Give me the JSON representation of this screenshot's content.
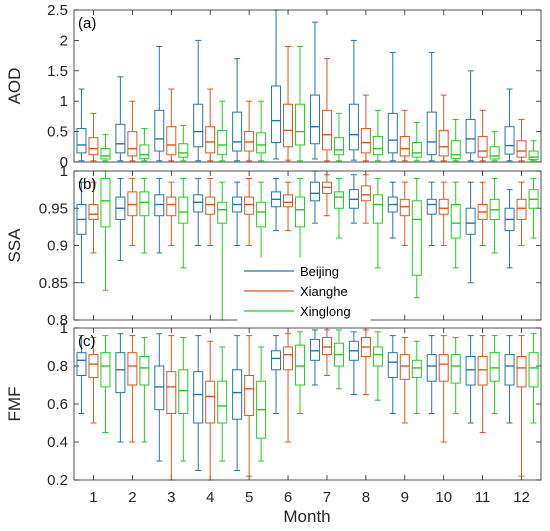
{
  "chart_data": {
    "type": "boxplot",
    "xlabel": "Month",
    "categories": [
      "1",
      "2",
      "3",
      "4",
      "5",
      "6",
      "7",
      "8",
      "9",
      "10",
      "11",
      "12"
    ],
    "stations": [
      {
        "name": "Beijing",
        "color": "#1f77b4"
      },
      {
        "name": "Xianghe",
        "color": "#e0561c"
      },
      {
        "name": "Xinglong",
        "color": "#22cc22"
      }
    ],
    "legend_position": "center",
    "panels": [
      {
        "label": "(a)",
        "ylabel": "AOD",
        "ylim": [
          0,
          2.5
        ],
        "yticks": [
          "0",
          "0.5",
          "1",
          "1.5",
          "2",
          "2.5"
        ],
        "series": [
          {
            "name": "Beijing",
            "boxes": [
              [
                0.02,
                0.15,
                0.28,
                0.55,
                1.2
              ],
              [
                0.02,
                0.15,
                0.3,
                0.62,
                1.4
              ],
              [
                0.02,
                0.18,
                0.38,
                0.85,
                1.9
              ],
              [
                0.02,
                0.25,
                0.5,
                0.95,
                2.0
              ],
              [
                0.02,
                0.18,
                0.33,
                0.82,
                1.7
              ],
              [
                0.05,
                0.32,
                0.68,
                1.25,
                2.5
              ],
              [
                0.05,
                0.3,
                0.58,
                1.1,
                2.3
              ],
              [
                0.03,
                0.2,
                0.45,
                0.95,
                2.0
              ],
              [
                0.02,
                0.15,
                0.36,
                0.8,
                1.8
              ],
              [
                0.02,
                0.12,
                0.33,
                0.82,
                1.8
              ],
              [
                0.02,
                0.15,
                0.38,
                0.7,
                1.5
              ],
              [
                0.02,
                0.13,
                0.27,
                0.58,
                1.2
              ]
            ]
          },
          {
            "name": "Xianghe",
            "boxes": [
              [
                0.02,
                0.12,
                0.22,
                0.4,
                0.8
              ],
              [
                0.02,
                0.1,
                0.22,
                0.5,
                1.0
              ],
              [
                0.02,
                0.12,
                0.28,
                0.58,
                1.2
              ],
              [
                0.02,
                0.15,
                0.33,
                0.58,
                1.2
              ],
              [
                0.02,
                0.18,
                0.33,
                0.5,
                1.0
              ],
              [
                0.03,
                0.25,
                0.52,
                0.95,
                1.9
              ],
              [
                0.02,
                0.2,
                0.45,
                0.85,
                1.7
              ],
              [
                0.02,
                0.15,
                0.32,
                0.55,
                1.1
              ],
              [
                0.02,
                0.1,
                0.22,
                0.42,
                0.85
              ],
              [
                0.02,
                0.1,
                0.25,
                0.52,
                1.1
              ],
              [
                0.02,
                0.08,
                0.18,
                0.42,
                0.85
              ],
              [
                0.02,
                0.08,
                0.18,
                0.35,
                0.7
              ]
            ]
          },
          {
            "name": "Xinglong",
            "boxes": [
              [
                0.02,
                0.05,
                0.1,
                0.22,
                0.45
              ],
              [
                0.02,
                0.06,
                0.12,
                0.28,
                0.55
              ],
              [
                0.02,
                0.08,
                0.15,
                0.3,
                0.6
              ],
              [
                0.02,
                0.12,
                0.28,
                0.52,
                1.0
              ],
              [
                0.02,
                0.15,
                0.28,
                0.48,
                1.0
              ],
              [
                0.02,
                0.28,
                0.5,
                0.95,
                1.9
              ],
              [
                0.02,
                0.12,
                0.2,
                0.4,
                0.8
              ],
              [
                0.02,
                0.12,
                0.22,
                0.42,
                0.85
              ],
              [
                0.02,
                0.08,
                0.15,
                0.32,
                0.65
              ],
              [
                0.02,
                0.06,
                0.12,
                0.35,
                0.7
              ],
              [
                0.02,
                0.05,
                0.1,
                0.25,
                0.5
              ],
              [
                0.02,
                0.04,
                0.08,
                0.18,
                0.35
              ]
            ]
          }
        ]
      },
      {
        "label": "(b)",
        "ylabel": "SSA",
        "ylim": [
          0.8,
          1.0
        ],
        "yticks": [
          "0.8",
          "0.85",
          "0.9",
          "0.95",
          "1"
        ],
        "series": [
          {
            "name": "Beijing",
            "boxes": [
              [
                0.85,
                0.915,
                0.935,
                0.955,
                0.985
              ],
              [
                0.88,
                0.935,
                0.95,
                0.965,
                0.99
              ],
              [
                0.89,
                0.94,
                0.955,
                0.968,
                0.99
              ],
              [
                0.9,
                0.945,
                0.958,
                0.968,
                0.99
              ],
              [
                0.9,
                0.945,
                0.955,
                0.965,
                0.985
              ],
              [
                0.92,
                0.952,
                0.962,
                0.972,
                0.99
              ],
              [
                0.93,
                0.96,
                0.97,
                0.985,
                1.0
              ],
              [
                0.93,
                0.95,
                0.962,
                0.975,
                0.995
              ],
              [
                0.91,
                0.945,
                0.955,
                0.965,
                0.985
              ],
              [
                0.9,
                0.942,
                0.955,
                0.962,
                0.985
              ],
              [
                0.85,
                0.915,
                0.93,
                0.95,
                0.985
              ],
              [
                0.87,
                0.92,
                0.935,
                0.95,
                0.975
              ]
            ]
          },
          {
            "name": "Xianghe",
            "boxes": [
              [
                0.89,
                0.935,
                0.942,
                0.955,
                0.985
              ],
              [
                0.9,
                0.94,
                0.955,
                0.972,
                0.99
              ],
              [
                0.9,
                0.94,
                0.955,
                0.965,
                0.985
              ],
              [
                0.9,
                0.942,
                0.955,
                0.965,
                0.99
              ],
              [
                0.9,
                0.942,
                0.955,
                0.965,
                0.99
              ],
              [
                0.92,
                0.952,
                0.958,
                0.968,
                0.985
              ],
              [
                0.94,
                0.97,
                0.978,
                0.985,
                0.995
              ],
              [
                0.93,
                0.96,
                0.968,
                0.98,
                0.995
              ],
              [
                0.9,
                0.94,
                0.952,
                0.962,
                0.985
              ],
              [
                0.9,
                0.942,
                0.95,
                0.962,
                0.985
              ],
              [
                0.9,
                0.935,
                0.945,
                0.955,
                0.985
              ],
              [
                0.9,
                0.935,
                0.95,
                0.962,
                0.985
              ]
            ]
          },
          {
            "name": "Xinglong",
            "boxes": [
              [
                0.84,
                0.925,
                0.96,
                0.99,
                1.0
              ],
              [
                0.89,
                0.94,
                0.958,
                0.972,
                0.99
              ],
              [
                0.87,
                0.93,
                0.945,
                0.965,
                0.99
              ],
              [
                0.8,
                0.93,
                0.948,
                0.958,
                0.985
              ],
              [
                0.88,
                0.925,
                0.945,
                0.958,
                0.985
              ],
              [
                0.86,
                0.925,
                0.948,
                0.965,
                0.99
              ],
              [
                0.91,
                0.95,
                0.965,
                0.972,
                0.99
              ],
              [
                0.87,
                0.93,
                0.955,
                0.968,
                0.99
              ],
              [
                0.83,
                0.86,
                0.935,
                0.96,
                0.99
              ],
              [
                0.87,
                0.91,
                0.93,
                0.955,
                0.985
              ],
              [
                0.89,
                0.935,
                0.948,
                0.962,
                0.99
              ],
              [
                0.91,
                0.95,
                0.962,
                0.975,
                0.99
              ]
            ]
          }
        ]
      },
      {
        "label": "(c)",
        "ylabel": "FMF",
        "ylim": [
          0.2,
          1.0
        ],
        "yticks": [
          "0.2",
          "0.4",
          "0.6",
          "0.8",
          "1"
        ],
        "series": [
          {
            "name": "Beijing",
            "boxes": [
              [
                0.55,
                0.75,
                0.83,
                0.87,
                0.96
              ],
              [
                0.4,
                0.66,
                0.78,
                0.87,
                0.97
              ],
              [
                0.3,
                0.57,
                0.69,
                0.8,
                0.97
              ],
              [
                0.25,
                0.5,
                0.65,
                0.77,
                0.96
              ],
              [
                0.25,
                0.52,
                0.66,
                0.78,
                0.96
              ],
              [
                0.55,
                0.78,
                0.84,
                0.88,
                0.96
              ],
              [
                0.7,
                0.83,
                0.88,
                0.94,
                0.99
              ],
              [
                0.65,
                0.83,
                0.88,
                0.93,
                0.98
              ],
              [
                0.55,
                0.74,
                0.82,
                0.87,
                0.96
              ],
              [
                0.55,
                0.72,
                0.8,
                0.86,
                0.96
              ],
              [
                0.5,
                0.7,
                0.78,
                0.85,
                0.96
              ],
              [
                0.5,
                0.7,
                0.8,
                0.86,
                0.96
              ]
            ]
          },
          {
            "name": "Xianghe",
            "boxes": [
              [
                0.5,
                0.74,
                0.81,
                0.86,
                0.95
              ],
              [
                0.4,
                0.7,
                0.8,
                0.87,
                0.96
              ],
              [
                0.2,
                0.55,
                0.69,
                0.77,
                0.96
              ],
              [
                0.2,
                0.5,
                0.64,
                0.72,
                0.93
              ],
              [
                0.22,
                0.54,
                0.68,
                0.75,
                0.96
              ],
              [
                0.4,
                0.78,
                0.86,
                0.9,
                0.97
              ],
              [
                0.75,
                0.86,
                0.9,
                0.95,
                0.99
              ],
              [
                0.65,
                0.85,
                0.9,
                0.95,
                0.99
              ],
              [
                0.5,
                0.73,
                0.8,
                0.86,
                0.95
              ],
              [
                0.4,
                0.72,
                0.81,
                0.86,
                0.96
              ],
              [
                0.45,
                0.7,
                0.78,
                0.85,
                0.96
              ],
              [
                0.22,
                0.69,
                0.79,
                0.85,
                0.96
              ]
            ]
          },
          {
            "name": "Xinglong",
            "boxes": [
              [
                0.45,
                0.69,
                0.8,
                0.87,
                0.96
              ],
              [
                0.4,
                0.7,
                0.79,
                0.85,
                0.95
              ],
              [
                0.3,
                0.55,
                0.67,
                0.78,
                0.95
              ],
              [
                0.3,
                0.5,
                0.59,
                0.72,
                0.9
              ],
              [
                0.3,
                0.42,
                0.57,
                0.72,
                0.9
              ],
              [
                0.55,
                0.7,
                0.8,
                0.91,
                0.98
              ],
              [
                0.68,
                0.8,
                0.86,
                0.92,
                0.99
              ],
              [
                0.62,
                0.8,
                0.86,
                0.9,
                0.98
              ],
              [
                0.55,
                0.74,
                0.79,
                0.83,
                0.93
              ],
              [
                0.55,
                0.71,
                0.8,
                0.86,
                0.95
              ],
              [
                0.55,
                0.72,
                0.79,
                0.87,
                0.96
              ],
              [
                0.5,
                0.69,
                0.79,
                0.87,
                0.97
              ]
            ]
          }
        ]
      }
    ]
  }
}
